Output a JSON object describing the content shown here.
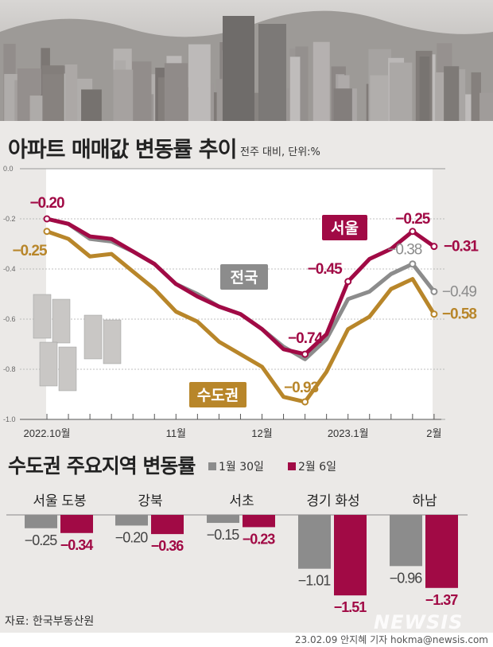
{
  "header": {
    "title": "아파트 매매값 변동률 추이",
    "subtitle": "전주 대비, 단위:%"
  },
  "chart_data": [
    {
      "type": "line",
      "title": "아파트 매매값 변동률 추이",
      "unit": "%",
      "ylim": [
        -1.0,
        0.0
      ],
      "yticks": [
        "0.0",
        "-0.2",
        "-0.4",
        "-0.6",
        "-0.8",
        "-1.0"
      ],
      "xlabels": [
        {
          "index": 0,
          "label": "2022.10월"
        },
        {
          "index": 6,
          "label": "11월"
        },
        {
          "index": 10,
          "label": "12월"
        },
        {
          "index": 14,
          "label": "2023.1월"
        },
        {
          "index": 18,
          "label": "2월"
        }
      ],
      "series": [
        {
          "name": "전국",
          "color": "#8c8c8c",
          "values": [
            -0.2,
            -0.22,
            -0.28,
            -0.29,
            -0.33,
            -0.38,
            -0.46,
            -0.5,
            -0.55,
            -0.58,
            -0.64,
            -0.71,
            -0.76,
            -0.68,
            -0.52,
            -0.49,
            -0.42,
            -0.38,
            -0.49
          ],
          "labels": [
            {
              "index": 17,
              "text": "-0.38"
            },
            {
              "index": 18,
              "text": "-0.49"
            }
          ]
        },
        {
          "name": "수도권",
          "color": "#b8862a",
          "values": [
            -0.25,
            -0.28,
            -0.35,
            -0.34,
            -0.41,
            -0.48,
            -0.57,
            -0.61,
            -0.69,
            -0.74,
            -0.79,
            -0.91,
            -0.93,
            -0.81,
            -0.64,
            -0.59,
            -0.48,
            -0.44,
            -0.58
          ],
          "labels": [
            {
              "index": 0,
              "text": "-0.25"
            },
            {
              "index": 12,
              "text": "-0.93"
            },
            {
              "index": 18,
              "text": "-0.58"
            }
          ]
        },
        {
          "name": "서울",
          "color": "#a10a45",
          "values": [
            -0.2,
            -0.22,
            -0.27,
            -0.28,
            -0.33,
            -0.38,
            -0.46,
            -0.51,
            -0.55,
            -0.58,
            -0.64,
            -0.72,
            -0.74,
            -0.66,
            -0.45,
            -0.36,
            -0.32,
            -0.25,
            -0.31
          ],
          "labels": [
            {
              "index": 0,
              "text": "-0.20"
            },
            {
              "index": 12,
              "text": "-0.74"
            },
            {
              "index": 14,
              "text": "-0.45"
            },
            {
              "index": 17,
              "text": "-0.25"
            },
            {
              "index": 18,
              "text": "-0.31"
            }
          ]
        }
      ]
    },
    {
      "type": "bar",
      "title": "수도권 주요지역 변동률",
      "categories": [
        "서울 도봉",
        "강북",
        "서초",
        "경기 화성",
        "하남"
      ],
      "series": [
        {
          "name": "1월 30일",
          "color": "#8c8c8c",
          "values": [
            -0.25,
            -0.2,
            -0.15,
            -1.01,
            -0.96
          ],
          "labels": [
            "-0.25",
            "-0.20",
            "-0.15",
            "-1.01",
            "-0.96"
          ]
        },
        {
          "name": "2월 6일",
          "color": "#a10a45",
          "values": [
            -0.34,
            -0.36,
            -0.23,
            -1.51,
            -1.37
          ],
          "labels": [
            "-0.34",
            "-0.36",
            "-0.23",
            "-1.51",
            "-1.37"
          ]
        }
      ]
    }
  ],
  "footer": {
    "source": "자료: 한국부동산원",
    "credit": "23.02.09 안지혜 기자 hokma@newsis.com",
    "logo": "NEWSIS"
  }
}
